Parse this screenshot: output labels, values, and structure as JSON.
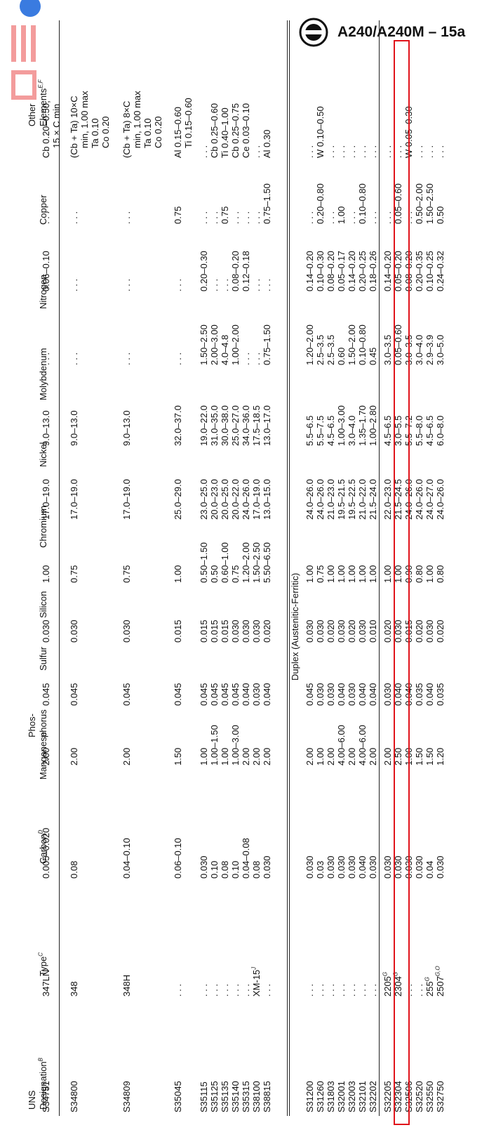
{
  "header": {
    "title": "A240/A240M – 15a"
  },
  "table": {
    "columns": [
      {
        "lines": [
          "UNS",
          "Designation"
        ],
        "note": "B"
      },
      {
        "lines": [
          "Type"
        ],
        "note": "C"
      },
      {
        "lines": [
          "Carbon"
        ],
        "note": "D"
      },
      {
        "lines": [
          "Manganese"
        ]
      },
      {
        "lines": [
          "Phos-",
          "phorus"
        ]
      },
      {
        "lines": [
          "Sulfur"
        ]
      },
      {
        "lines": [
          "Silicon"
        ]
      },
      {
        "lines": [
          "Chromium"
        ]
      },
      {
        "lines": [
          "Nickel"
        ]
      },
      {
        "lines": [
          "Molybdenum"
        ]
      },
      {
        "lines": [
          "Nitrogen"
        ]
      },
      {
        "lines": [
          "Copper"
        ]
      },
      {
        "lines": [
          "Other",
          "Elements"
        ],
        "note": "E,F"
      }
    ],
    "groups": [
      {
        "rows": [
          [
            "S34751",
            "347LN",
            "0.005–0.020",
            "2.00",
            "0.045",
            "0.030",
            "1.00",
            "17.0–19.0",
            "9.0–13.0",
            ". . .",
            "0.06–0.10",
            ". . .",
            [
              "Cb 0.20–0.50,",
              "15 × C min"
            ]
          ],
          [
            "S34800",
            "348",
            "0.08",
            "2.00",
            "0.045",
            "0.030",
            "0.75",
            "17.0–19.0",
            "9.0–13.0",
            ". . .",
            ". . .",
            ". . .",
            [
              "(Cb + Ta) 10×C",
              "min, 1.00 max",
              "Ta 0.10",
              "Co 0.20"
            ]
          ],
          [
            "S34809",
            "348H",
            "0.04–0.10",
            "2.00",
            "0.045",
            "0.030",
            "0.75",
            "17.0–19.0",
            "9.0–13.0",
            ". . .",
            ". . .",
            ". . .",
            [
              "(Cb + Ta) 8×C",
              "min, 1.00 max",
              "Ta 0.10",
              "Co 0.20"
            ]
          ],
          [
            "S35045",
            ". . .",
            "0.06–0.10",
            "1.50",
            "0.045",
            "0.015",
            "1.00",
            "25.0–29.0",
            "32.0–37.0",
            ". . .",
            ". . .",
            "0.75",
            [
              "Al 0.15–0.60",
              "Ti 0.15–0.60"
            ]
          ],
          [
            "S35115",
            ". . .",
            "0.030",
            "1.00",
            "0.045",
            "0.015",
            "0.50–1.50",
            "23.0–25.0",
            "19.0–22.0",
            "1.50–2.50",
            "0.20–0.30",
            ". . .",
            ". . ."
          ],
          [
            "S35125",
            ". . .",
            "0.10",
            "1.00–1.50",
            "0.045",
            "0.015",
            "0.50",
            "20.0–23.0",
            "31.0–35.0",
            "2.00–3.00",
            ". . .",
            ". . .",
            "Cb 0.25–0.60"
          ],
          [
            "S35135",
            ". . .",
            "0.08",
            "1.00",
            "0.045",
            "0.015",
            "0.60–1.00",
            "20.0–25.0",
            "30.0–38.0",
            "4.0–4.8",
            ". . .",
            "0.75",
            "Ti 0.40–1.00"
          ],
          [
            "S35140",
            ". . .",
            "0.10",
            "1.00–3.00",
            "0.045",
            "0.030",
            "0.75",
            "20.0–22.0",
            "25.0–27.0",
            "1.00–2.00",
            "0.08–0.20",
            ". . .",
            "Cb 0.25–0.75"
          ],
          [
            "S35315",
            ". . .",
            "0.04–0.08",
            "2.00",
            "0.040",
            "0.030",
            "1.20–2.00",
            "24.0–26.0",
            "34.0–36.0",
            ". . .",
            "0.12–0.18",
            ". . .",
            "Ce 0.03–0.10"
          ],
          [
            "S38100",
            {
              "text": "XM-15",
              "note": "J"
            },
            "0.08",
            "2.00",
            "0.030",
            "0.030",
            "1.50–2.50",
            "17.0–19.0",
            "17.5–18.5",
            ". . .",
            ". . .",
            ". . .",
            ". . ."
          ],
          [
            "S38815",
            ". . .",
            "0.030",
            "2.00",
            "0.040",
            "0.020",
            "5.50–6.50",
            "13.0–15.0",
            "13.0–17.0",
            "0.75–1.50",
            ". . .",
            "0.75–1.50",
            "Al 0.30"
          ]
        ]
      },
      {
        "title": "Duplex (Austenitic-Ferritic)",
        "rows": [
          [
            "S31200",
            ". . .",
            "0.030",
            "2.00",
            "0.045",
            "0.030",
            "1.00",
            "24.0–26.0",
            "5.5–6.5",
            "1.20–2.00",
            "0.14–0.20",
            ". . .",
            ". . ."
          ],
          [
            "S31260",
            ". . .",
            "0.03",
            "1.00",
            "0.030",
            "0.030",
            "0.75",
            "24.0–26.0",
            "5.5–7.5",
            "2.5–3.5",
            "0.10–0.30",
            "0.20–0.80",
            "W 0.10–0.50"
          ],
          [
            "S31803",
            ". . .",
            "0.030",
            "2.00",
            "0.030",
            "0.020",
            "1.00",
            "21.0–23.0",
            "4.5–6.5",
            "2.5–3.5",
            "0.08–0.20",
            ". . .",
            ". . ."
          ],
          [
            "S32001",
            ". . .",
            "0.030",
            "4.00–6.00",
            "0.040",
            "0.030",
            "1.00",
            "19.5–21.5",
            "1.00–3.00",
            "0.60",
            "0.05–0.17",
            "1.00",
            ". . ."
          ],
          [
            "S32003",
            ". . .",
            "0.030",
            "2.00",
            "0.030",
            "0.020",
            "1.00",
            "19.5–22.5",
            "3.0–4.0",
            "1.50–2.00",
            "0.14–0.20",
            ". . .",
            ". . ."
          ],
          [
            "S32101",
            ". . .",
            "0.040",
            "4.00–6.00",
            "0.040",
            "0.030",
            "1.00",
            "21.0–22.0",
            "1.35–1.70",
            "0.10–0.80",
            "0.20–0.25",
            "0.10–0.80",
            ". . ."
          ],
          [
            "S32202",
            ". . .",
            "0.030",
            "2.00",
            "0.040",
            "0.010",
            "1.00",
            "21.5–24.0",
            "1.00–2.80",
            "0.45",
            "0.18–0.26",
            ". . .",
            ". . ."
          ],
          [
            "S32205",
            {
              "text": "2205",
              "note": "G"
            },
            "0.030",
            "2.00",
            "0.030",
            "0.020",
            "1.00",
            "22.0–23.0",
            "4.5–6.5",
            "3.0–3.5",
            "0.14–0.20",
            ". . .",
            ". . ."
          ],
          [
            "S32304",
            {
              "text": "2304",
              "note": "G"
            },
            "0.030",
            "2.50",
            "0.040",
            "0.030",
            "1.00",
            "21.5–24.5",
            "3.0–5.5",
            "0.05–0.60",
            "0.05–0.20",
            "0.05–0.60",
            ". . ."
          ],
          [
            "S32506",
            ". . .",
            "0.030",
            "1.00",
            "0.040",
            "0.015",
            "0.90",
            "24.0–26.0",
            "5.5–7.2",
            "3.0–3.5",
            "0.08–0.20",
            ". . .",
            "W 0.05–0.30"
          ],
          [
            "S32520",
            ". . .",
            "0.030",
            "1.50",
            "0.035",
            "0.020",
            "0.80",
            "24.0–26.0",
            "5.5–8.0",
            "3.0–4.0",
            "0.20–0.35",
            "0.50–2.00",
            ". . ."
          ],
          [
            "S32550",
            {
              "text": "255",
              "note": "G"
            },
            "0.04",
            "1.50",
            "0.040",
            "0.030",
            "1.00",
            "24.0–27.0",
            "4.5–6.5",
            "2.9–3.9",
            "0.10–0.25",
            "1.50–2.50",
            ". . ."
          ],
          [
            "S32750",
            {
              "text": "2507",
              "note": "G,O"
            },
            "0.030",
            "1.20",
            "0.035",
            "0.020",
            "0.80",
            "24.0–26.0",
            "6.0–8.0",
            "3.0–5.0",
            "0.24–0.32",
            "0.50",
            ". . ."
          ]
        ]
      }
    ]
  }
}
